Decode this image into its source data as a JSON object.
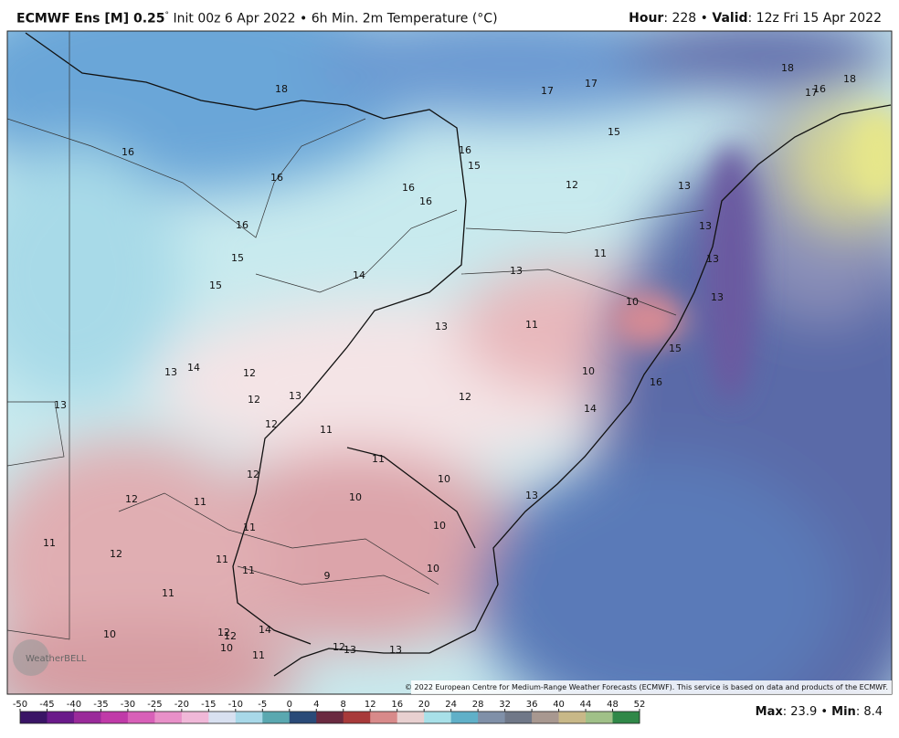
{
  "header": {
    "model": "ECMWF Ens [M] 0.25",
    "degree": "°",
    "description": "Init 00z 6 Apr 2022 • 6h Min. 2m Temperature (°C)",
    "hour_label": "Hour",
    "hour_value": ": 228 • ",
    "valid_label": "Valid",
    "valid_value": ": 12z Fri 15 Apr 2022"
  },
  "map_labels": [
    18,
    16,
    16,
    16,
    15,
    15,
    14,
    17,
    17,
    18,
    17,
    16,
    18,
    16,
    15,
    16,
    16,
    15,
    12,
    13,
    13,
    11,
    13,
    13,
    13,
    10,
    13,
    11,
    15,
    10,
    16,
    13,
    14,
    12,
    12,
    13,
    13,
    12,
    14,
    12,
    11,
    11,
    10,
    12,
    10,
    13,
    12,
    11,
    11,
    10,
    11,
    12,
    11,
    11,
    9,
    10,
    11,
    10,
    12,
    12,
    14,
    10,
    11,
    12,
    13,
    13
  ],
  "logo": "WeatherBELL",
  "copyright": "© 2022 European Centre for Medium-Range Weather Forecasts (ECMWF). This service is based on data and products of the ECMWF.",
  "colorbar_ticks": [
    -50,
    -45,
    -40,
    -35,
    -30,
    -25,
    -20,
    -15,
    -10,
    -5,
    0,
    4,
    8,
    12,
    16,
    20,
    24,
    28,
    32,
    36,
    40,
    44,
    48,
    52
  ],
  "footer": {
    "max_label": "Max",
    "max_value": ": 23.9 • ",
    "min_label": "Min",
    "min_value": ": 8.4"
  }
}
